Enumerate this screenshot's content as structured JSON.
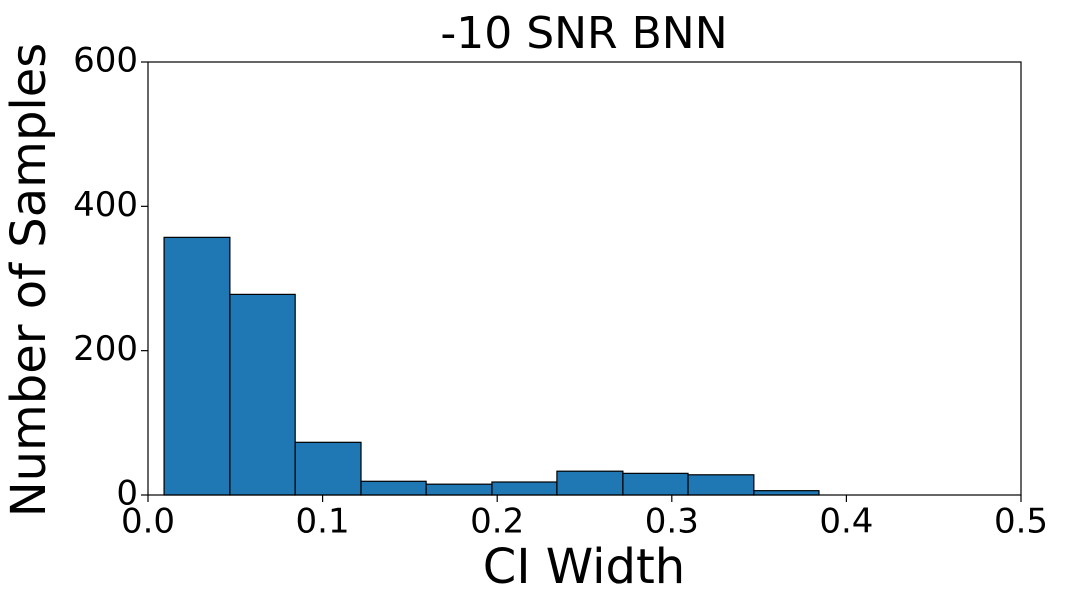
{
  "chart_data": {
    "type": "histogram",
    "title": "-10 SNR BNN",
    "xlabel": "CI Width",
    "ylabel": "Number of Samples",
    "bins": [
      0.0092,
      0.0469,
      0.0843,
      0.122,
      0.1593,
      0.197,
      0.2342,
      0.272,
      0.3093,
      0.347,
      0.3843
    ],
    "counts": [
      357,
      278,
      73,
      19,
      15,
      18,
      33,
      30,
      28,
      6
    ],
    "color": "#1f77b4",
    "edgecolor": "#000000",
    "xlim": [
      0,
      0.5
    ],
    "xticks": [
      {
        "value": 0,
        "label": "0.0"
      },
      0.1,
      0.2,
      0.3,
      0.4,
      0.5
    ],
    "ylim": [
      0,
      600
    ],
    "yticks": [
      0,
      200,
      400,
      600
    ]
  }
}
